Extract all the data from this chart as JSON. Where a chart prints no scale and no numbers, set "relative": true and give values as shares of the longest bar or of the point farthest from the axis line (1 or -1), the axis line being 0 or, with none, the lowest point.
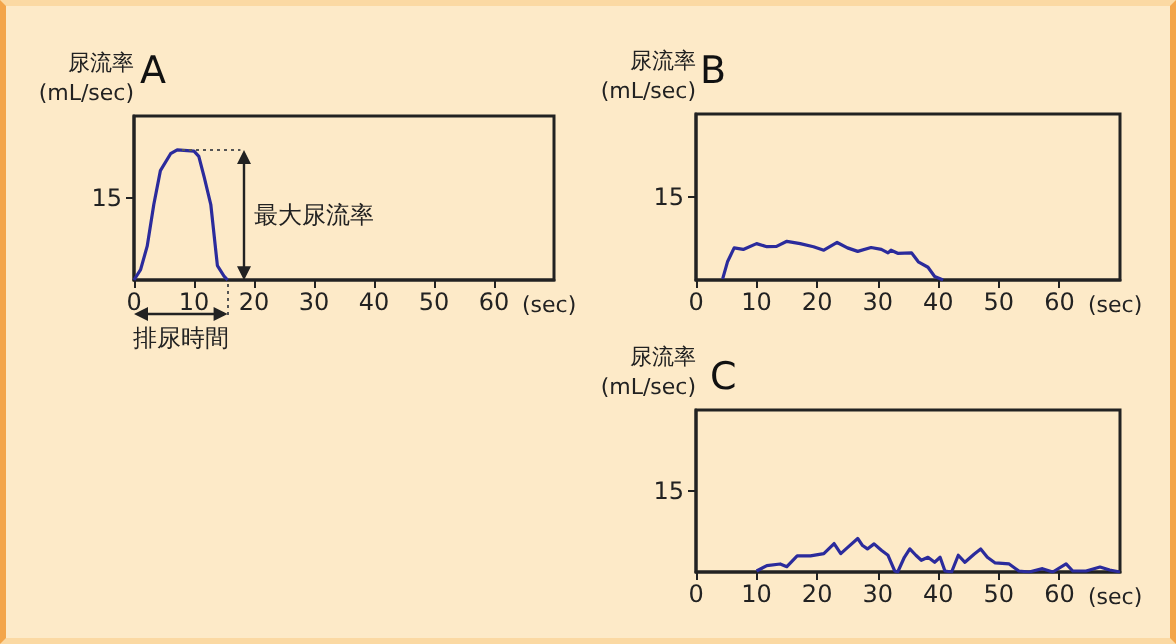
{
  "chart_data": [
    {
      "type": "line",
      "title": "A",
      "ylabel": "尿流率 (mL/sec)",
      "xlabel": "(sec)",
      "relative": true,
      "xlim": [
        0,
        70
      ],
      "xticks": [
        0,
        10,
        20,
        30,
        40,
        50,
        60
      ],
      "grid": false,
      "marker": "none",
      "series": [
        {
          "color": "#2b2b9c",
          "x": [
            0,
            1.1,
            2.2,
            3.3,
            4.4,
            6.1,
            7.2,
            10,
            10.8,
            11.7,
            12.8,
            13.9,
            15,
            15.6
          ],
          "values": [
            0,
            0.08,
            0.26,
            0.58,
            0.84,
            0.97,
            1,
            0.99,
            0.95,
            0.79,
            0.58,
            0.11,
            0.03,
            0
          ]
        }
      ],
      "annotations": [
        "15",
        "最大尿流率",
        "排尿時間"
      ]
    },
    {
      "type": "line",
      "title": "B",
      "ylabel": "尿流率 (mL/sec)",
      "xlabel": "(sec)",
      "relative": true,
      "xlim": [
        0,
        70
      ],
      "xticks": [
        0,
        10,
        20,
        30,
        40,
        50,
        60
      ],
      "grid": false,
      "marker": "none",
      "series": [
        {
          "color": "#2b2b9c",
          "x": [
            4.4,
            5.2,
            6.3,
            7.8,
            10,
            11.7,
            13.3,
            15,
            17.2,
            19.4,
            21.1,
            23.3,
            25,
            26.7,
            28.9,
            30.6,
            31.7,
            32.2,
            33.3,
            35.6,
            36.7,
            38.3,
            39.4,
            40.8
          ],
          "values": [
            0.03,
            0.47,
            0.83,
            0.79,
            0.94,
            0.86,
            0.87,
            1,
            0.94,
            0.86,
            0.77,
            0.97,
            0.83,
            0.74,
            0.84,
            0.79,
            0.7,
            0.77,
            0.69,
            0.7,
            0.47,
            0.33,
            0.09,
            0
          ]
        }
      ],
      "annotations": [
        "15"
      ]
    },
    {
      "type": "line",
      "title": "C",
      "ylabel": "尿流率 (mL/sec)",
      "xlabel": "(sec)",
      "relative": true,
      "xlim": [
        0,
        70
      ],
      "xticks": [
        0,
        10,
        20,
        30,
        40,
        50,
        60
      ],
      "grid": false,
      "marker": "none",
      "series": [
        {
          "color": "#2b2b9c",
          "x": [
            10,
            11.7,
            13.9,
            15,
            16.7,
            18.9,
            21.1,
            22.8,
            23.9,
            25,
            26.7,
            27.5,
            28.3,
            29.4,
            30.6,
            31.7,
            32.8,
            33.3,
            34.4,
            35.3,
            36.3,
            37.2,
            38.3,
            39.4,
            40.3,
            41.1,
            42.2,
            43.3,
            44.4,
            45.9,
            47,
            48.1,
            49.4,
            51.7,
            53.3,
            55,
            57.2,
            58.9,
            61.1,
            62.2,
            64.4,
            66.7,
            68.3,
            70
          ],
          "values": [
            0.03,
            0.19,
            0.24,
            0.16,
            0.48,
            0.48,
            0.55,
            0.85,
            0.55,
            0.73,
            1,
            0.79,
            0.69,
            0.84,
            0.65,
            0.5,
            0.03,
            0,
            0.44,
            0.69,
            0.5,
            0.35,
            0.44,
            0.29,
            0.44,
            0.03,
            0,
            0.5,
            0.29,
            0.53,
            0.69,
            0.44,
            0.27,
            0.24,
            0.03,
            0,
            0.1,
            0,
            0.24,
            0.03,
            0.03,
            0.15,
            0.06,
            0
          ]
        }
      ],
      "annotations": [
        "15"
      ]
    }
  ]
}
